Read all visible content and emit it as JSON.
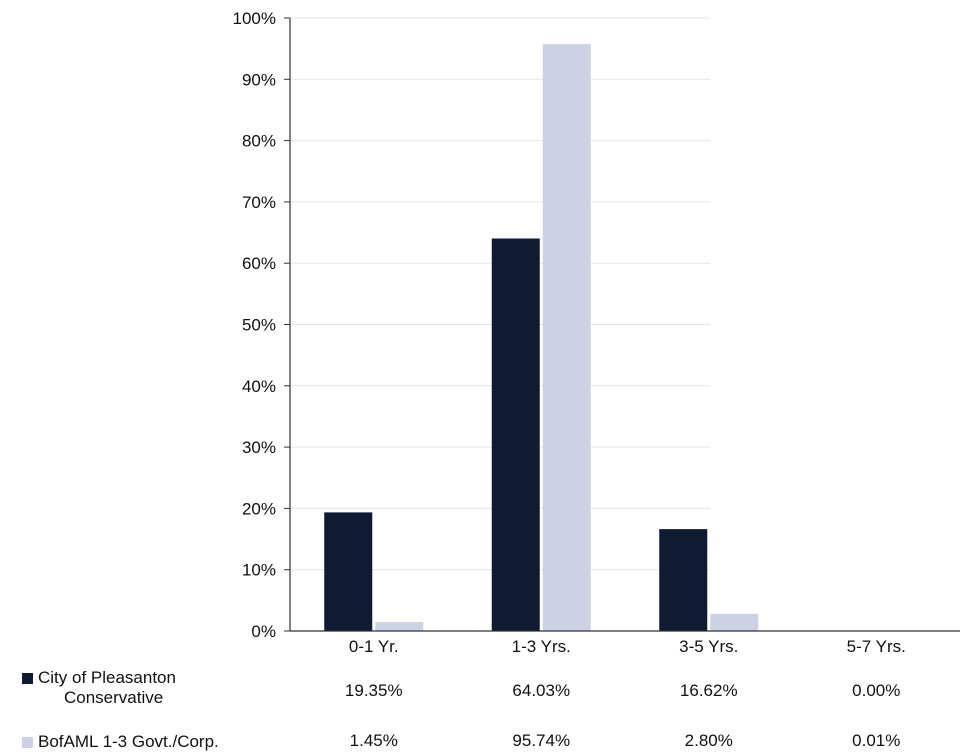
{
  "chart_data": {
    "type": "bar",
    "categories": [
      "0-1 Yr.",
      "1-3 Yrs.",
      "3-5 Yrs.",
      "5-7 Yrs."
    ],
    "series": [
      {
        "name": "City of Pleasanton Conservative",
        "legend_lines": [
          "City of Pleasanton",
          "Conservative"
        ],
        "color": "#0f1a33",
        "values": [
          19.35,
          64.03,
          16.62,
          0.0
        ],
        "labels": [
          "19.35%",
          "64.03%",
          "16.62%",
          "0.00%"
        ]
      },
      {
        "name": "BofAML 1-3 Govt./Corp.",
        "legend_lines": [
          "BofAML 1-3 Govt./Corp."
        ],
        "color": "#ccd1e6",
        "values": [
          1.45,
          95.74,
          2.8,
          0.01
        ],
        "labels": [
          "1.45%",
          "95.74%",
          "2.80%",
          "0.01%"
        ]
      }
    ],
    "yticks": [
      "0%",
      "10%",
      "20%",
      "30%",
      "40%",
      "50%",
      "60%",
      "70%",
      "80%",
      "90%",
      "100%"
    ],
    "ylim": [
      0,
      100
    ],
    "grid": true,
    "legend": "data-table-left"
  }
}
